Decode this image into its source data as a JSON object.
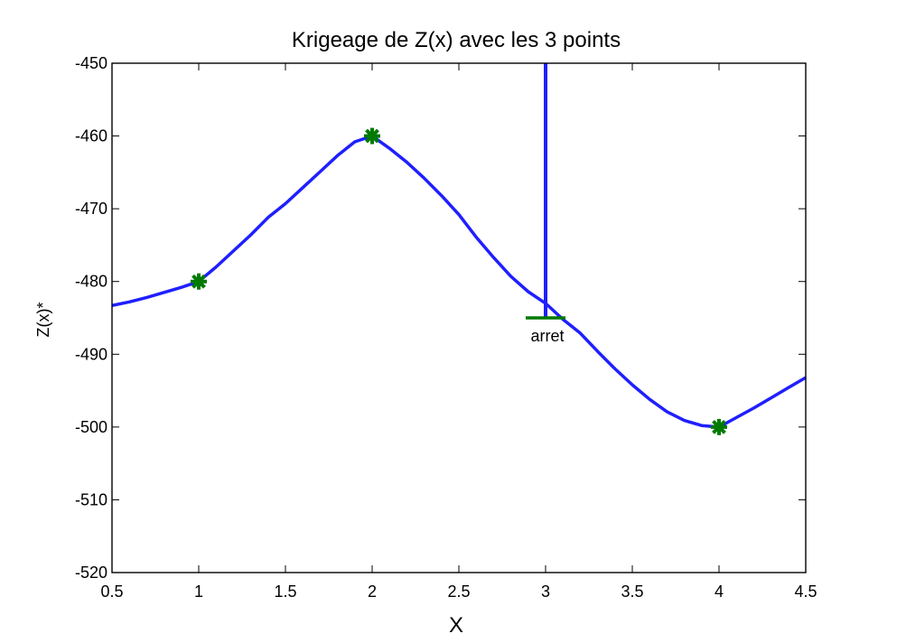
{
  "chart_data": {
    "type": "line",
    "title": "Krigeage de Z(x) avec les 3 points",
    "xlabel": "X",
    "ylabel": "Z(x)*",
    "xlim": [
      0.5,
      4.5
    ],
    "ylim": [
      -520,
      -450
    ],
    "xticks": [
      0.5,
      1,
      1.5,
      2,
      2.5,
      3,
      3.5,
      4,
      4.5
    ],
    "xtick_labels": [
      "0.5",
      "1",
      "1.5",
      "2",
      "2.5",
      "3",
      "3.5",
      "4",
      "4.5"
    ],
    "yticks": [
      -520,
      -510,
      -500,
      -490,
      -480,
      -470,
      -460,
      -450
    ],
    "ytick_labels": [
      "-520",
      "-510",
      "-500",
      "-490",
      "-480",
      "-470",
      "-460",
      "-450"
    ],
    "grid": false,
    "series": [
      {
        "role": "kriging-curve",
        "color": "#1f1fff",
        "x": [
          0.5,
          0.6,
          0.7,
          0.8,
          0.9,
          1.0,
          1.1,
          1.2,
          1.3,
          1.4,
          1.5,
          1.6,
          1.7,
          1.8,
          1.9,
          2.0,
          2.1,
          2.2,
          2.3,
          2.4,
          2.5,
          2.6,
          2.7,
          2.8,
          2.9,
          3.0,
          3.1,
          3.2,
          3.3,
          3.4,
          3.5,
          3.6,
          3.7,
          3.8,
          3.9,
          4.0,
          4.1,
          4.2,
          4.3,
          4.4,
          4.5
        ],
        "y": [
          -483.3,
          -482.8,
          -482.2,
          -481.5,
          -480.8,
          -480.0,
          -478.0,
          -475.8,
          -473.6,
          -471.2,
          -469.3,
          -467.1,
          -464.9,
          -462.7,
          -460.8,
          -460.0,
          -461.7,
          -463.6,
          -465.8,
          -468.2,
          -470.8,
          -473.9,
          -476.7,
          -479.3,
          -481.4,
          -483.0,
          -485.2,
          -487.1,
          -489.6,
          -492.0,
          -494.2,
          -496.2,
          -497.9,
          -499.1,
          -499.8,
          -500.0,
          -498.7,
          -497.4,
          -496.0,
          -494.6,
          -493.2
        ]
      },
      {
        "role": "observed-points",
        "color": "#007a00",
        "marker": "*",
        "x": [
          1,
          2,
          4
        ],
        "y": [
          -480,
          -460,
          -500
        ]
      }
    ],
    "annotations": [
      {
        "text": "arret",
        "x": 3,
        "y_top": -450,
        "y_bottom": -485,
        "bar_color": "#1f1fff",
        "cap_color": "#007a00"
      }
    ]
  }
}
